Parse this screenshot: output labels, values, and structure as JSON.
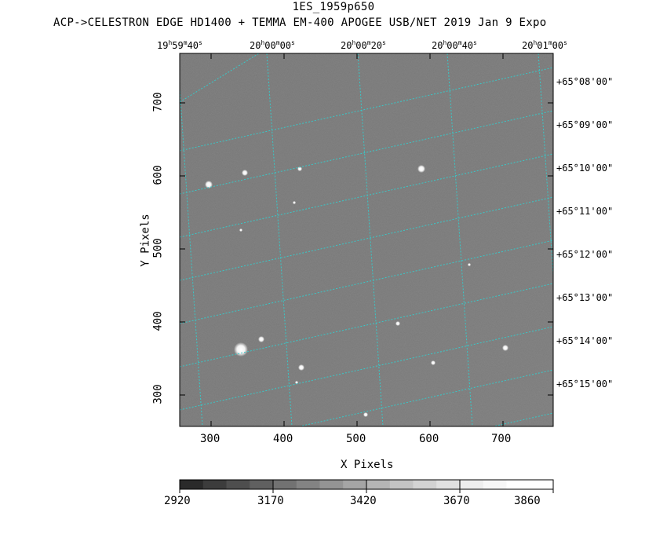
{
  "title": "1ES_1959p650",
  "subtitle": "ACP->CELESTRON EDGE HD1400 + TEMMA EM-400 APOGEE USB/NET   2019 Jan  9    Expo",
  "x_axis": {
    "label": "X Pixels",
    "ticks": [
      "300",
      "400",
      "500",
      "600",
      "700"
    ]
  },
  "y_axis": {
    "label": "Y Pixels",
    "ticks": [
      "300",
      "400",
      "500",
      "600",
      "700"
    ]
  },
  "ra_labels": [
    {
      "h": "19",
      "m": "59",
      "s": "40"
    },
    {
      "h": "20",
      "m": "00",
      "s": "00"
    },
    {
      "h": "20",
      "m": "00",
      "s": "20"
    },
    {
      "h": "20",
      "m": "00",
      "s": "40"
    },
    {
      "h": "20",
      "m": "01",
      "s": "00"
    }
  ],
  "dec_labels": [
    "+65°08'00\"",
    "+65°09'00\"",
    "+65°10'00\"",
    "+65°11'00\"",
    "+65°12'00\"",
    "+65°13'00\"",
    "+65°14'00\"",
    "+65°15'00\""
  ],
  "colorbar": {
    "ticks": [
      "2920",
      "3170",
      "3420",
      "3670",
      "3860"
    ]
  },
  "colors": {
    "grid": "#38c8c8",
    "background": "#7a7a7a"
  }
}
